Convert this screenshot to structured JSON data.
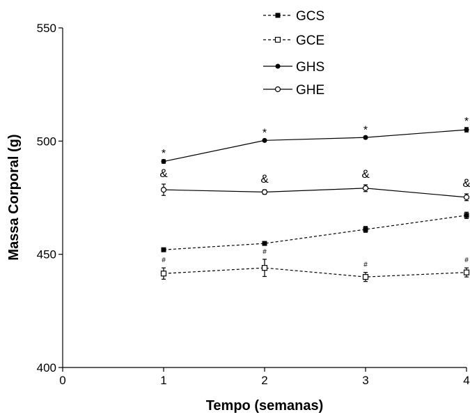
{
  "chart_data": {
    "type": "line",
    "title": "",
    "xlabel": "Tempo (semanas)",
    "ylabel": "Massa Corporal (g)",
    "xlim": [
      0,
      4
    ],
    "ylim": [
      400,
      550
    ],
    "xticks": [
      0,
      1,
      2,
      3,
      4
    ],
    "yticks": [
      400,
      450,
      500,
      550
    ],
    "grid": false,
    "legend_position": "top-center",
    "x": [
      1,
      2,
      3,
      4
    ],
    "series": [
      {
        "name": "GCS",
        "marker": "filled-square",
        "line": "dashed",
        "values": [
          452,
          454.8,
          461,
          467.2
        ],
        "errors": [
          0.8,
          0.8,
          1.3,
          1.4
        ],
        "annotation": ""
      },
      {
        "name": "GCE",
        "marker": "open-square",
        "line": "dashed",
        "values": [
          441.5,
          444,
          440,
          442
        ],
        "errors": [
          2.5,
          3.8,
          2,
          2
        ],
        "annotation": "#"
      },
      {
        "name": "GHS",
        "marker": "filled-circle",
        "line": "solid",
        "values": [
          491,
          500.3,
          501.6,
          505
        ],
        "errors": [
          0.8,
          0.5,
          0.5,
          1
        ],
        "annotation": "*"
      },
      {
        "name": "GHE",
        "marker": "open-circle",
        "line": "solid",
        "values": [
          478.5,
          477.5,
          479.2,
          475.2
        ],
        "errors": [
          2.5,
          1,
          1.5,
          1.5
        ],
        "annotation": "&"
      }
    ]
  }
}
